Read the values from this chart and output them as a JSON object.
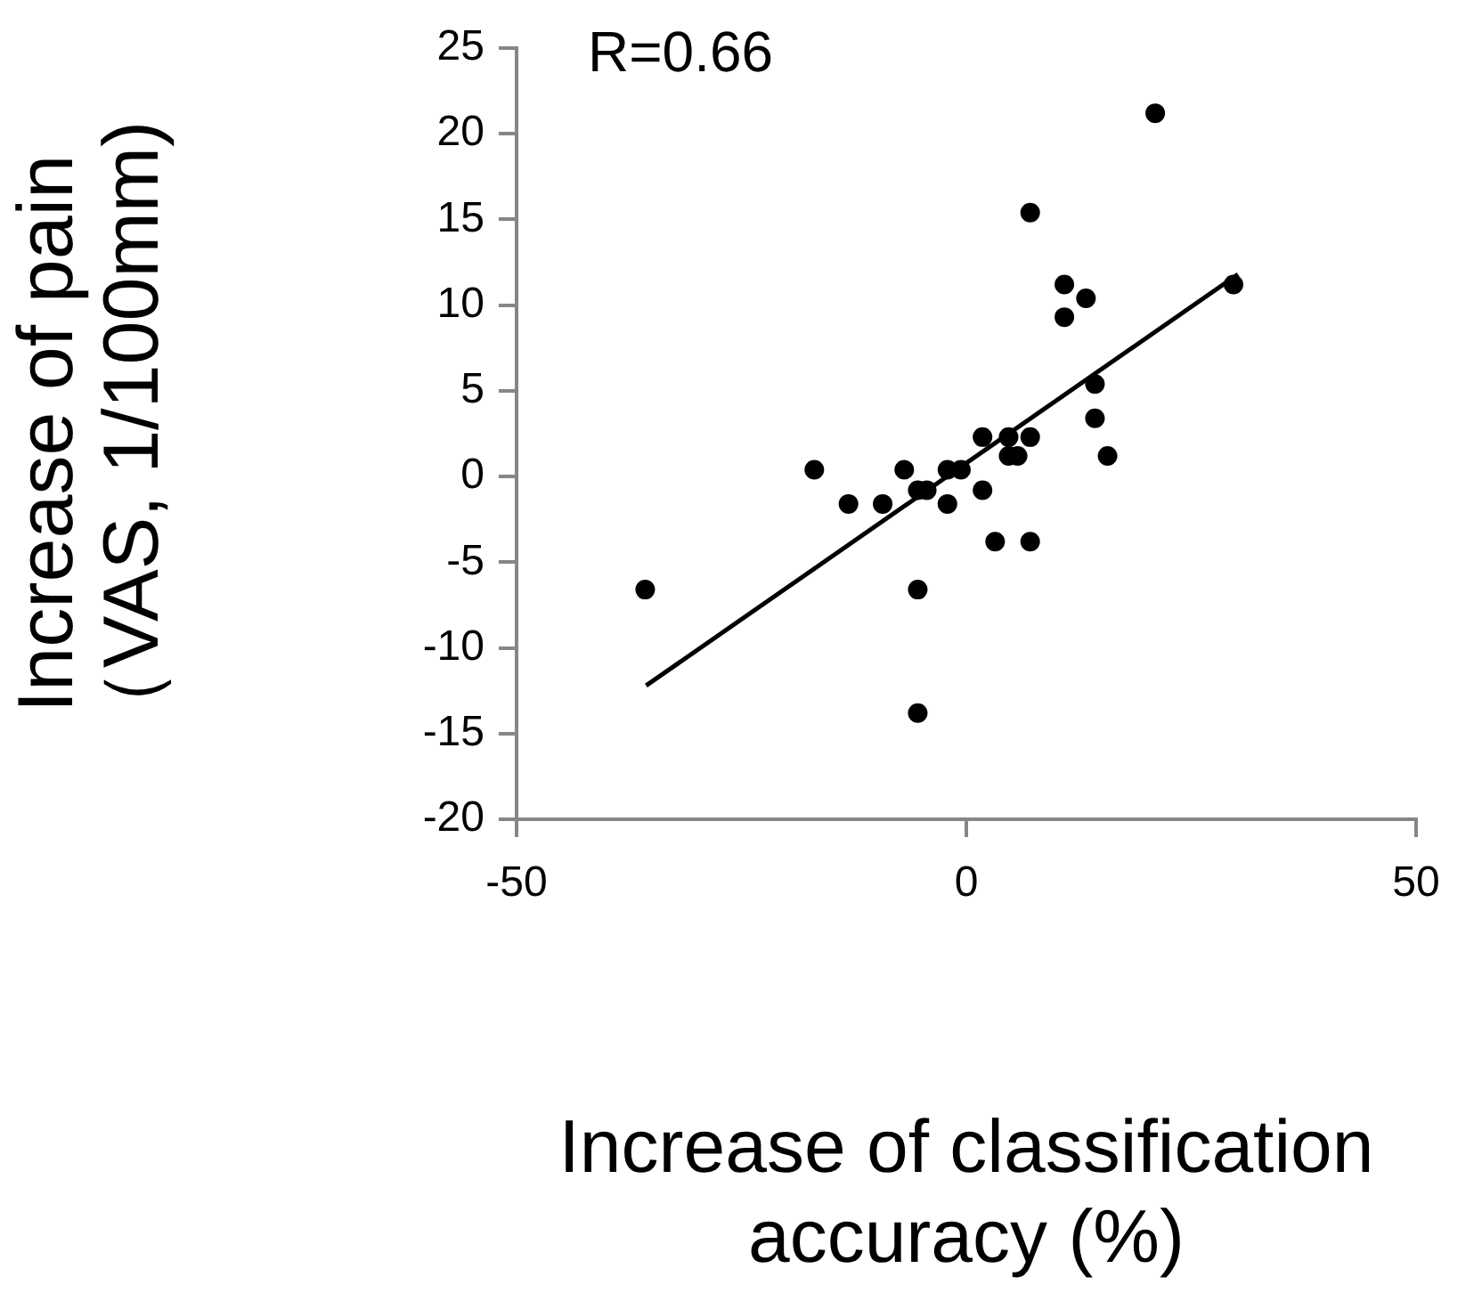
{
  "chart_data": {
    "type": "scatter",
    "xlabel": "Increase of classification accuracy (%)",
    "ylabel": "Increase of pain （VAS, 1/100mm)",
    "annotations": [
      "R=0.66"
    ],
    "xlim": [
      -50,
      50
    ],
    "xticks": [
      -50,
      0,
      50
    ],
    "ylim": [
      -20,
      25
    ],
    "yticks": [
      -20,
      -15,
      -10,
      -5,
      0,
      5,
      10,
      15,
      20,
      25
    ],
    "grid": false,
    "series": [
      {
        "type": "scatter",
        "color": "#000000",
        "marker": "circle",
        "x": [
          -35.7,
          -16.9,
          -13.1,
          -9.3,
          -6.9,
          -5.4,
          -4.4,
          -5.4,
          -5.4,
          -2.1,
          -0.6,
          -2.1,
          1.8,
          1.8,
          3.2,
          4.7,
          4.7,
          5.7,
          7.1,
          7.1,
          7.1,
          10.9,
          10.9,
          13.3,
          14.3,
          14.3,
          15.7,
          21.0,
          29.7
        ],
        "values": [
          -6.6,
          0.4,
          -1.6,
          -1.6,
          0.4,
          -0.8,
          -0.8,
          -6.6,
          -13.8,
          0.4,
          0.4,
          -1.6,
          2.3,
          -0.8,
          -3.8,
          2.3,
          1.2,
          1.2,
          2.3,
          -3.8,
          15.4,
          11.2,
          9.3,
          10.4,
          5.4,
          3.4,
          1.2,
          21.2,
          11.2
        ]
      },
      {
        "type": "line",
        "color": "#000000",
        "marker": "none",
        "line_style": "solid",
        "x": [
          -35.6,
          30.2
        ],
        "values": [
          -12.2,
          11.8
        ]
      }
    ]
  }
}
